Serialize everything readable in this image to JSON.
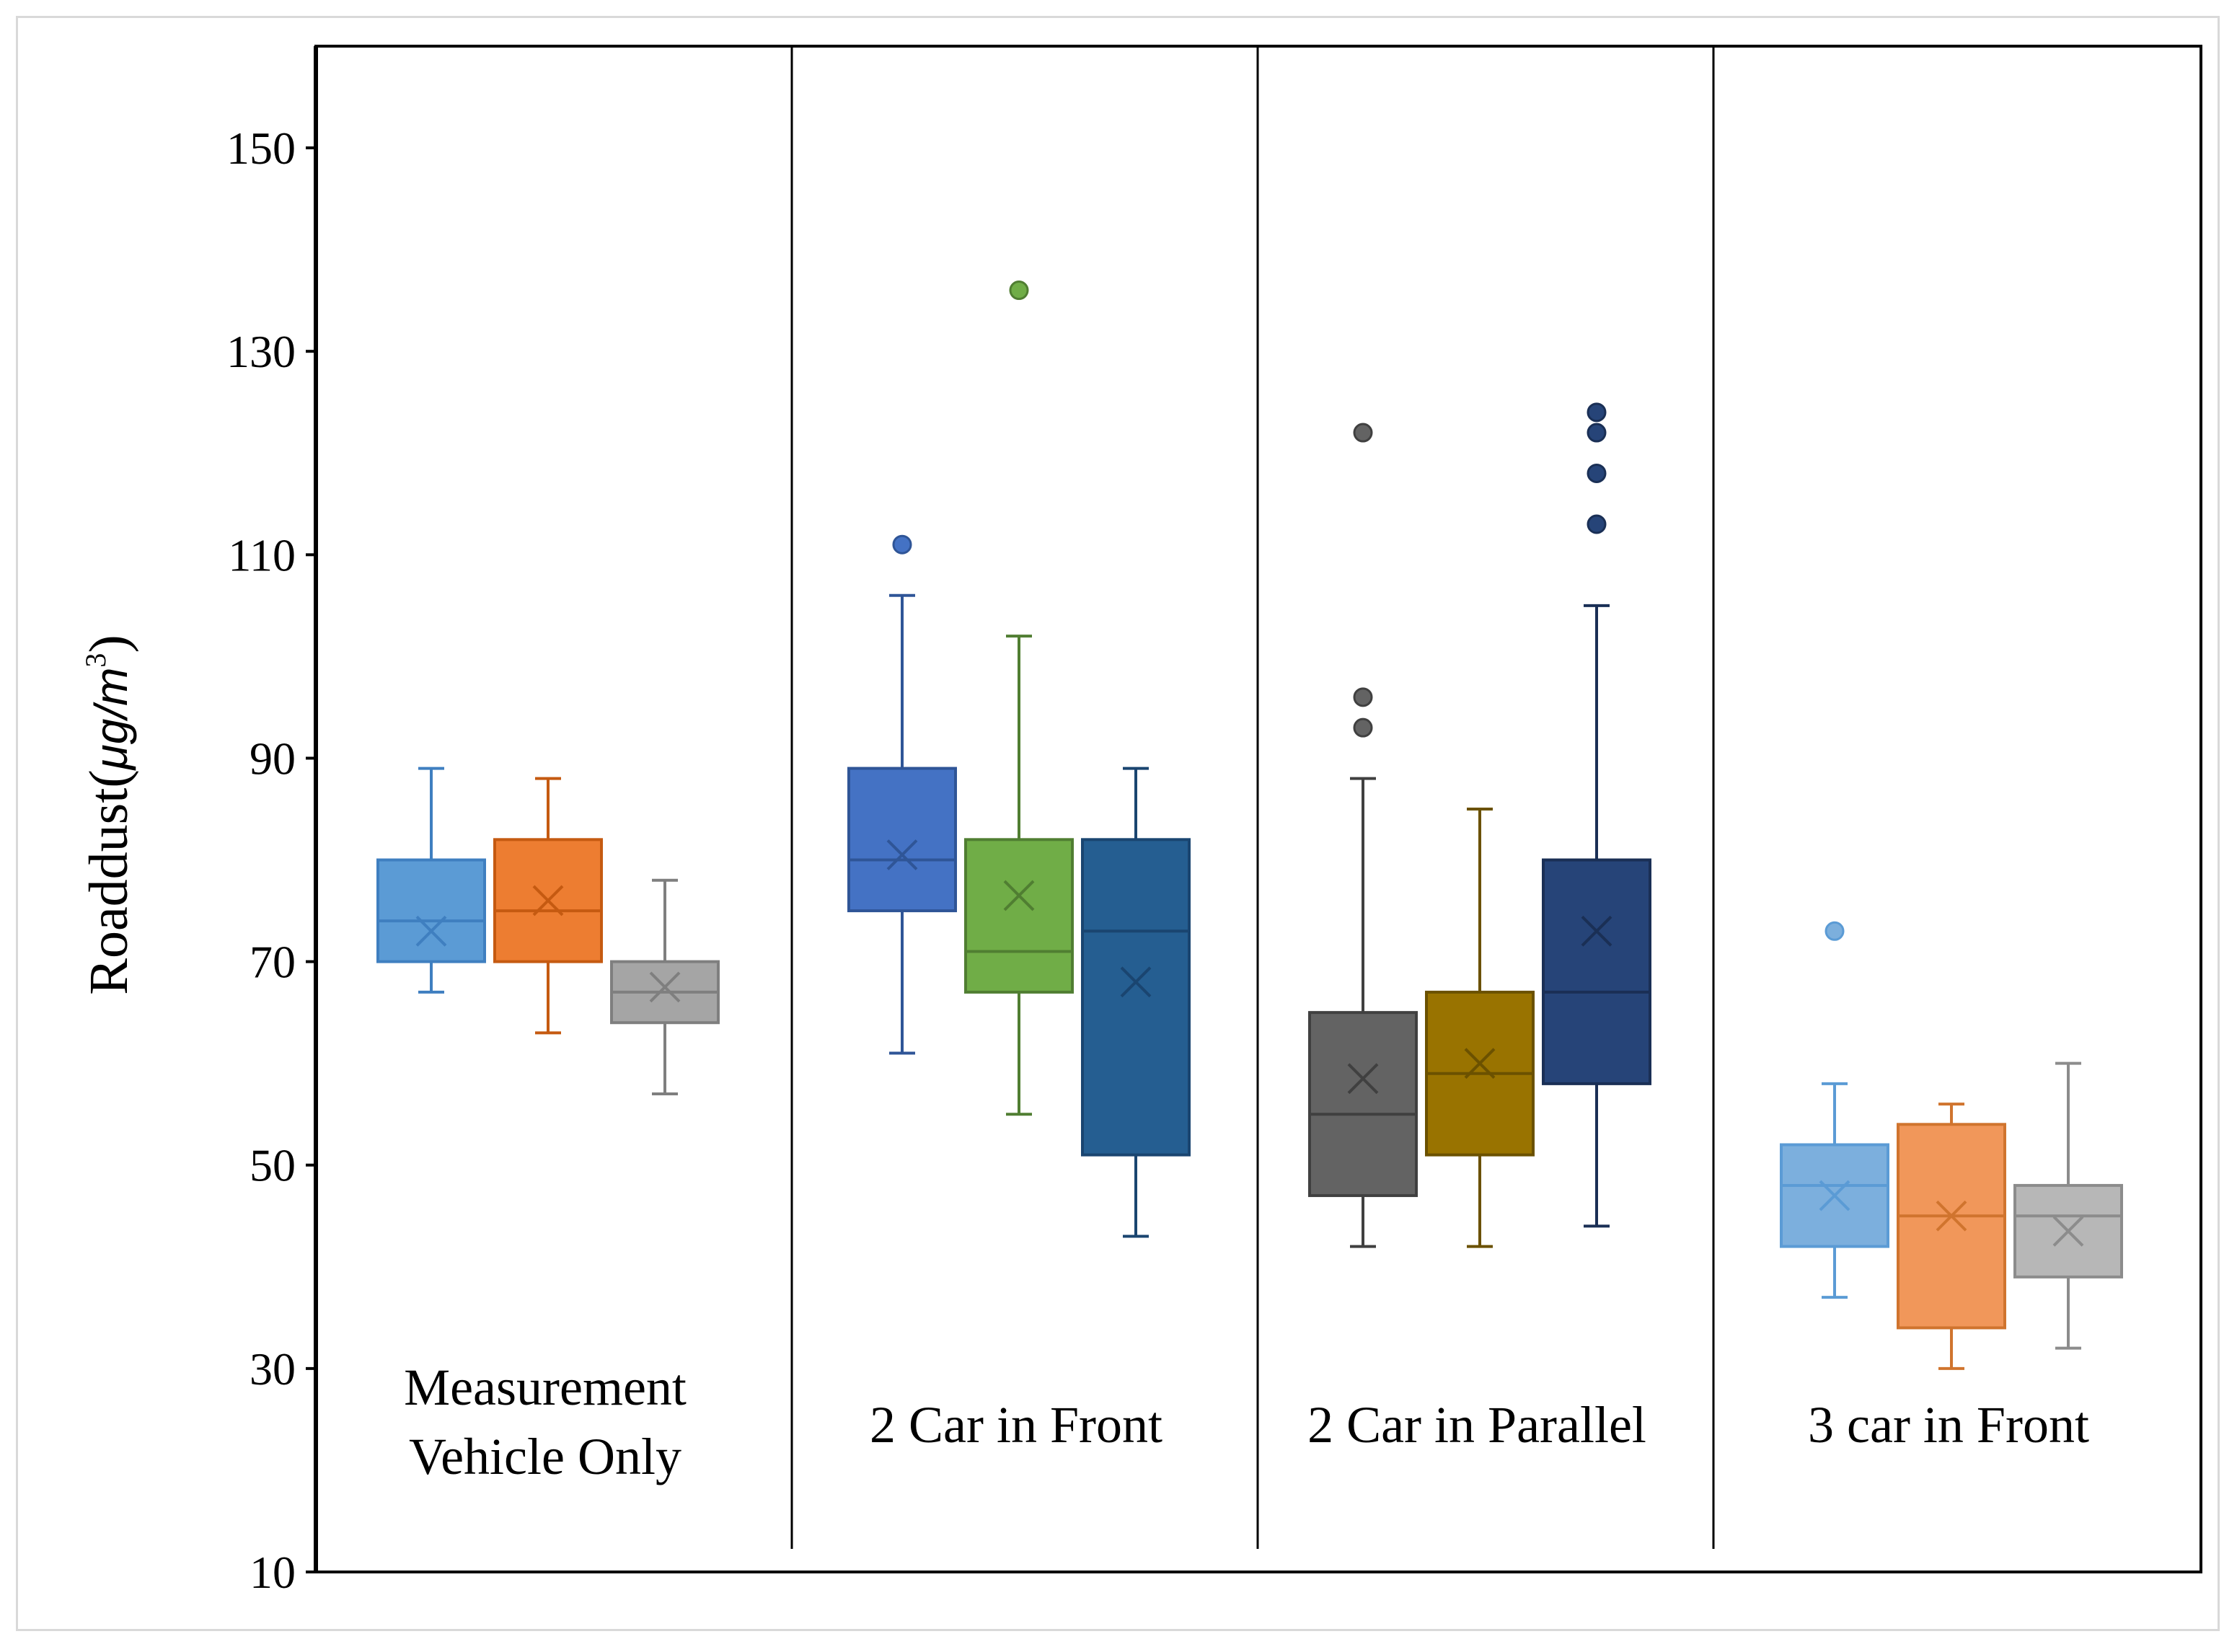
{
  "chart_data": {
    "type": "box",
    "title": "",
    "ylabel": "Roaddust(μg/m³)",
    "ylabel_main": "Roaddust(",
    "ylabel_unit": "μg/m",
    "ylabel_exponent": "3",
    "ylabel_close": ")",
    "ylim": [
      10,
      160
    ],
    "yticks": [
      10,
      30,
      50,
      70,
      90,
      110,
      130,
      150
    ],
    "groups": [
      {
        "label_lines": [
          "Measurement",
          "Vehicle Only"
        ],
        "boxes": [
          {
            "color": "#5b9bd5",
            "edge": "#3f7fc0",
            "whisker_low": 67,
            "q1": 70,
            "median": 74,
            "q3": 80,
            "whisker_high": 89,
            "mean": 73,
            "outliers": []
          },
          {
            "color": "#ed7d31",
            "edge": "#c55a11",
            "whisker_low": 63,
            "q1": 70,
            "median": 75,
            "q3": 82,
            "whisker_high": 88,
            "mean": 76,
            "outliers": []
          },
          {
            "color": "#a5a5a5",
            "edge": "#7f7f7f",
            "whisker_low": 57,
            "q1": 64,
            "median": 67,
            "q3": 70,
            "whisker_high": 78,
            "mean": 67.5,
            "outliers": []
          }
        ]
      },
      {
        "label_lines": [
          "2 Car in Front"
        ],
        "boxes": [
          {
            "color": "#4472c4",
            "edge": "#2f5597",
            "whisker_low": 61,
            "q1": 75,
            "median": 80,
            "q3": 89,
            "whisker_high": 106,
            "mean": 80.5,
            "outliers": [
              111
            ]
          },
          {
            "color": "#70ad47",
            "edge": "#507e32",
            "whisker_low": 55,
            "q1": 67,
            "median": 71,
            "q3": 82,
            "whisker_high": 102,
            "mean": 76.5,
            "outliers": [
              136
            ]
          },
          {
            "color": "#255e91",
            "edge": "#1a4570",
            "whisker_low": 43,
            "q1": 51,
            "median": 73,
            "q3": 82,
            "whisker_high": 89,
            "mean": 68,
            "outliers": []
          }
        ]
      },
      {
        "label_lines": [
          "2 Car in Parallel"
        ],
        "boxes": [
          {
            "color": "#636363",
            "edge": "#404040",
            "whisker_low": 42,
            "q1": 47,
            "median": 55,
            "q3": 65,
            "whisker_high": 88,
            "mean": 58.5,
            "outliers": [
              93,
              96,
              122
            ]
          },
          {
            "color": "#997300",
            "edge": "#6b5100",
            "whisker_low": 42,
            "q1": 51,
            "median": 59,
            "q3": 67,
            "whisker_high": 85,
            "mean": 60,
            "outliers": []
          },
          {
            "color": "#264478",
            "edge": "#1a2f55",
            "whisker_low": 44,
            "q1": 58,
            "median": 67,
            "q3": 80,
            "whisker_high": 105,
            "mean": 73,
            "outliers": [
              113,
              118,
              122,
              124
            ]
          }
        ]
      },
      {
        "label_lines": [
          "3 car in Front"
        ],
        "boxes": [
          {
            "color": "#7cafdd",
            "edge": "#5b9bd5",
            "whisker_low": 37,
            "q1": 42,
            "median": 48,
            "q3": 52,
            "whisker_high": 58,
            "mean": 47,
            "outliers": [
              73
            ]
          },
          {
            "color": "#f1975a",
            "edge": "#d0742e",
            "whisker_low": 30,
            "q1": 34,
            "median": 45,
            "q3": 54,
            "whisker_high": 56,
            "mean": 45,
            "outliers": []
          },
          {
            "color": "#b7b7b7",
            "edge": "#8c8c8c",
            "whisker_low": 32,
            "q1": 39,
            "median": 45,
            "q3": 48,
            "whisker_high": 60,
            "mean": 43.5,
            "outliers": []
          }
        ]
      }
    ]
  }
}
